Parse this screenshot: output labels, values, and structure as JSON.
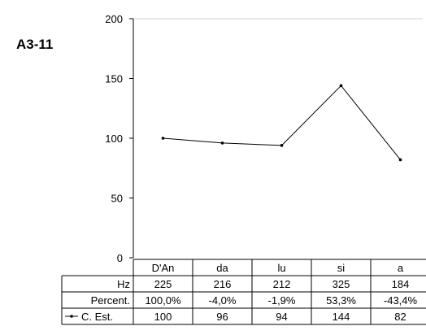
{
  "chart_data": {
    "type": "line",
    "title": "A3-11",
    "ylim": [
      0,
      200
    ],
    "yticks": [
      0,
      50,
      100,
      150,
      200
    ],
    "grid": false,
    "categories": [
      "D'An",
      "da",
      "lu",
      "si",
      "a"
    ],
    "series": [
      {
        "name": "C. Est.",
        "values": [
          100,
          96,
          94,
          144,
          82
        ]
      }
    ],
    "table": {
      "row_labels": [
        "Hz",
        "Percent.",
        "C. Est."
      ],
      "rows": [
        [
          "225",
          "216",
          "212",
          "325",
          "184"
        ],
        [
          "100,0%",
          "-4,0%",
          "-1,9%",
          "53,3%",
          "-43,4%"
        ],
        [
          "100",
          "96",
          "94",
          "144",
          "82"
        ]
      ]
    },
    "colors": {
      "line": "#000000",
      "axis": "#000000"
    }
  }
}
